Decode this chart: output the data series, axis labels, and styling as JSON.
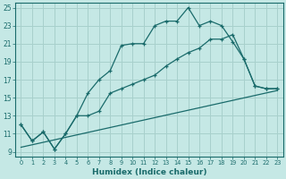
{
  "xlabel": "Humidex (Indice chaleur)",
  "xlim": [
    -0.5,
    23.5
  ],
  "ylim": [
    8.5,
    25.5
  ],
  "yticks": [
    9,
    11,
    13,
    15,
    17,
    19,
    21,
    23,
    25
  ],
  "xticks": [
    0,
    1,
    2,
    3,
    4,
    5,
    6,
    7,
    8,
    9,
    10,
    11,
    12,
    13,
    14,
    15,
    16,
    17,
    18,
    19,
    20,
    21,
    22,
    23
  ],
  "bg_color": "#c5e8e5",
  "grid_color": "#a8d0cc",
  "line_color": "#1a6b6b",
  "line1_x": [
    0,
    1,
    2,
    3,
    4,
    5,
    6,
    7,
    8,
    9,
    10,
    11,
    12,
    13,
    14,
    15,
    16,
    17,
    18,
    19,
    20,
    21,
    22,
    23
  ],
  "line1_y": [
    12.0,
    10.2,
    11.2,
    9.3,
    11.0,
    13.0,
    15.5,
    17.0,
    18.0,
    20.8,
    21.0,
    21.0,
    23.0,
    23.5,
    23.5,
    25.0,
    23.0,
    23.5,
    23.0,
    21.2,
    19.3,
    16.3,
    16.0,
    16.0
  ],
  "line1_marker_x": [
    0,
    1,
    2,
    3,
    4,
    5,
    6,
    7,
    8,
    9,
    10,
    11,
    12,
    13,
    14,
    15,
    16,
    17,
    18,
    19,
    20,
    21,
    22,
    23
  ],
  "line2_x": [
    0,
    1,
    2,
    3,
    4,
    5,
    6,
    7,
    8,
    9,
    10,
    11,
    12,
    13,
    14,
    15,
    16,
    17,
    18,
    19,
    20,
    21,
    22,
    23
  ],
  "line2_y": [
    12.0,
    10.2,
    11.2,
    9.3,
    11.0,
    13.0,
    13.0,
    13.5,
    15.5,
    16.0,
    16.5,
    17.0,
    17.5,
    18.5,
    19.3,
    20.0,
    20.5,
    21.5,
    21.5,
    22.0,
    19.3,
    16.3,
    16.0,
    16.0
  ],
  "line3_x": [
    0,
    23
  ],
  "line3_y": [
    9.5,
    15.8
  ]
}
